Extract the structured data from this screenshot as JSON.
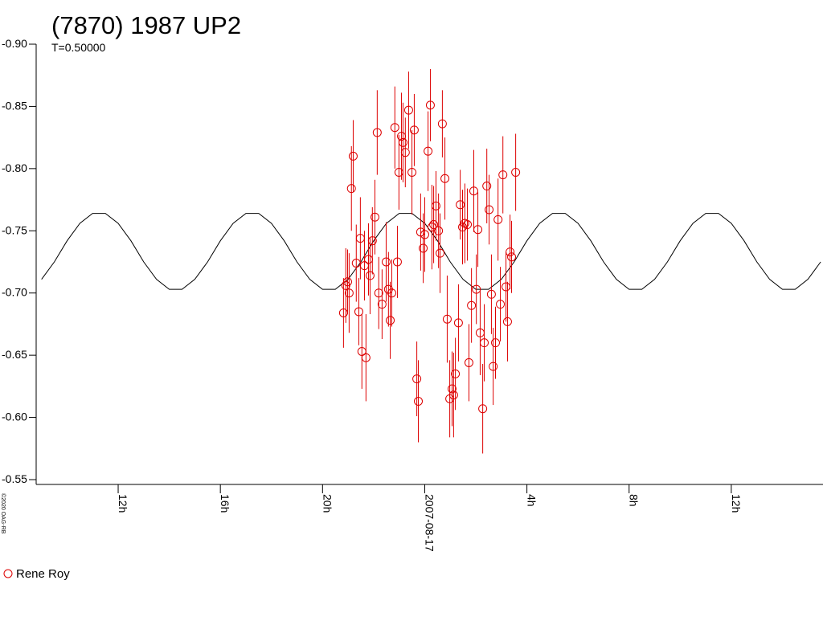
{
  "chart_data": {
    "type": "scatter",
    "title": "(7870) 1987 UP2",
    "subtitle": "T=0.50000",
    "watermark": "©2020 OAG-RB",
    "xlim": [
      -15.21,
      15.59
    ],
    "xticks": [
      {
        "value": -12,
        "label": "12h"
      },
      {
        "value": -8,
        "label": "16h"
      },
      {
        "value": -4,
        "label": "20h"
      },
      {
        "value": 0,
        "label": "2007-08-17"
      },
      {
        "value": 4,
        "label": "4h"
      },
      {
        "value": 8,
        "label": "8h"
      },
      {
        "value": 12,
        "label": "12h"
      }
    ],
    "ylim": [
      -0.55,
      -0.9
    ],
    "yticks": [
      {
        "value": -0.9,
        "label": "-0.90"
      },
      -0.85,
      {
        "value": -0.8,
        "label": "-0.80"
      },
      -0.75,
      {
        "value": -0.7,
        "label": "-0.70"
      },
      -0.65,
      {
        "value": -0.6,
        "label": "-0.60"
      },
      -0.55
    ],
    "series": [
      {
        "name": "Rene Roy",
        "color": "#dd0000",
        "x": [
          -3.18,
          -3.09,
          -3.02,
          -2.96,
          -2.87,
          -2.8,
          -2.68,
          -2.58,
          -2.52,
          -2.46,
          -2.36,
          -2.3,
          -2.2,
          -2.14,
          -2.05,
          -1.95,
          -1.86,
          -1.8,
          -1.67,
          -1.51,
          -1.42,
          -1.35,
          -1.29,
          -1.17,
          -1.07,
          -1.01,
          -0.91,
          -0.85,
          -0.76,
          -0.63,
          -0.5,
          -0.41,
          -0.31,
          -0.25,
          -0.16,
          -0.06,
          0.0,
          0.13,
          0.22,
          0.28,
          0.35,
          0.44,
          0.54,
          0.6,
          0.69,
          0.79,
          0.88,
          0.98,
          1.07,
          1.13,
          1.2,
          1.32,
          1.39,
          1.48,
          1.57,
          1.67,
          1.73,
          1.83,
          1.92,
          2.02,
          2.08,
          2.17,
          2.27,
          2.33,
          2.43,
          2.52,
          2.61,
          2.68,
          2.77,
          2.87,
          2.96,
          3.06,
          3.18,
          3.24,
          3.34,
          3.4,
          3.56
        ],
        "values": [
          -0.684,
          -0.706,
          -0.709,
          -0.7,
          -0.784,
          -0.81,
          -0.724,
          -0.685,
          -0.744,
          -0.653,
          -0.722,
          -0.648,
          -0.727,
          -0.714,
          -0.742,
          -0.761,
          -0.829,
          -0.7,
          -0.691,
          -0.725,
          -0.703,
          -0.678,
          -0.7,
          -0.833,
          -0.725,
          -0.797,
          -0.826,
          -0.821,
          -0.813,
          -0.847,
          -0.797,
          -0.831,
          -0.631,
          -0.613,
          -0.749,
          -0.736,
          -0.747,
          -0.814,
          -0.851,
          -0.753,
          -0.755,
          -0.77,
          -0.75,
          -0.732,
          -0.836,
          -0.792,
          -0.679,
          -0.615,
          -0.623,
          -0.618,
          -0.635,
          -0.676,
          -0.771,
          -0.753,
          -0.756,
          -0.755,
          -0.644,
          -0.69,
          -0.782,
          -0.703,
          -0.751,
          -0.668,
          -0.607,
          -0.66,
          -0.786,
          -0.767,
          -0.699,
          -0.641,
          -0.66,
          -0.759,
          -0.691,
          -0.795,
          -0.705,
          -0.677,
          -0.733,
          -0.729,
          -0.797
        ],
        "errors": [
          0.028,
          0.03,
          0.026,
          0.032,
          0.034,
          0.029,
          0.031,
          0.027,
          0.033,
          0.03,
          0.028,
          0.035,
          0.029,
          0.031,
          0.027,
          0.03,
          0.034,
          0.029,
          0.028,
          0.032,
          0.03,
          0.031,
          0.027,
          0.033,
          0.029,
          0.03,
          0.035,
          0.032,
          0.028,
          0.031,
          0.034,
          0.029,
          0.03,
          0.033,
          0.031,
          0.028,
          0.03,
          0.032,
          0.029,
          0.034,
          0.031,
          0.028,
          0.03,
          0.032,
          0.027,
          0.033,
          0.035,
          0.031,
          0.03,
          0.034,
          0.029,
          0.031,
          0.028,
          0.03,
          0.032,
          0.029,
          0.031,
          0.03,
          0.033,
          0.028,
          0.03,
          0.034,
          0.036,
          0.031,
          0.03,
          0.028,
          0.032,
          0.031,
          0.029,
          0.033,
          0.03,
          0.031,
          0.028,
          0.032,
          0.03,
          0.029,
          0.031
        ]
      }
    ],
    "curve": {
      "color": "#000000",
      "x": [
        -15,
        -14.5,
        -14,
        -13.5,
        -13,
        -12.5,
        -12,
        -11.5,
        -11,
        -10.5,
        -10,
        -9.5,
        -9,
        -8.5,
        -8,
        -7.5,
        -7,
        -6.5,
        -6,
        -5.5,
        -5,
        -4.5,
        -4,
        -3.5,
        -3,
        -2.5,
        -2,
        -1.5,
        -1,
        -0.5,
        0,
        0.5,
        1,
        1.5,
        2,
        2.5,
        3,
        3.5,
        4,
        4.5,
        5,
        5.5,
        6,
        6.5,
        7,
        7.5,
        8,
        8.5,
        9,
        9.5,
        10,
        10.5,
        11,
        11.5,
        12,
        12.5,
        13,
        13.5,
        14,
        14.5,
        15,
        15.5
      ],
      "values": [
        -0.711,
        -0.725,
        -0.742,
        -0.756,
        -0.764,
        -0.764,
        -0.756,
        -0.742,
        -0.725,
        -0.711,
        -0.703,
        -0.703,
        -0.711,
        -0.725,
        -0.742,
        -0.756,
        -0.764,
        -0.764,
        -0.756,
        -0.742,
        -0.725,
        -0.711,
        -0.703,
        -0.703,
        -0.711,
        -0.725,
        -0.742,
        -0.756,
        -0.764,
        -0.764,
        -0.756,
        -0.742,
        -0.725,
        -0.711,
        -0.703,
        -0.703,
        -0.711,
        -0.725,
        -0.742,
        -0.756,
        -0.764,
        -0.764,
        -0.756,
        -0.742,
        -0.725,
        -0.711,
        -0.703,
        -0.703,
        -0.711,
        -0.725,
        -0.742,
        -0.756,
        -0.764,
        -0.764,
        -0.756,
        -0.742,
        -0.725,
        -0.711,
        -0.703,
        -0.703,
        -0.711,
        -0.725
      ]
    }
  }
}
